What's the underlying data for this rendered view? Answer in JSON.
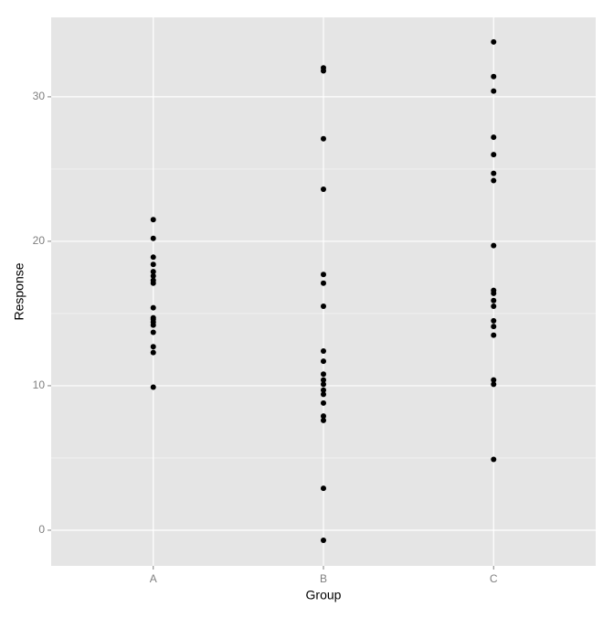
{
  "chart_data": {
    "type": "strip",
    "x_label": "Group",
    "y_label": "Response",
    "categories": [
      "A",
      "B",
      "C"
    ],
    "values": [
      [
        21.5,
        20.2,
        18.9,
        18.4,
        17.9,
        17.6,
        17.3,
        17.1,
        15.4,
        14.7,
        14.6,
        14.4,
        14.2,
        13.7,
        12.7,
        12.3,
        9.9
      ],
      [
        32.0,
        31.8,
        27.1,
        23.6,
        17.7,
        17.1,
        15.5,
        12.4,
        11.7,
        10.8,
        10.4,
        10.1,
        9.7,
        9.4,
        8.8,
        7.9,
        7.6,
        2.9,
        -0.7
      ],
      [
        33.8,
        31.4,
        30.4,
        27.2,
        26.0,
        24.7,
        24.2,
        19.7,
        16.6,
        16.4,
        15.9,
        15.5,
        14.5,
        14.1,
        13.5,
        10.4,
        10.1,
        4.9
      ]
    ],
    "color": "#000000",
    "ylim": [
      -2.47,
      35.5
    ],
    "yticks": [
      0,
      10,
      20,
      30
    ],
    "grid": true,
    "minor_grid": true
  }
}
